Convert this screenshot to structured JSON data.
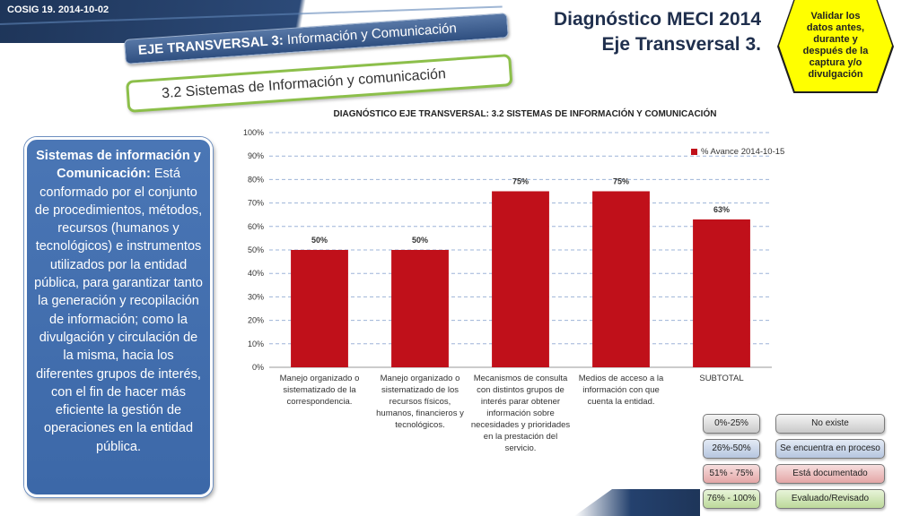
{
  "header": {
    "doc_code": "COSIG 19. 2014-10-02",
    "title_line1": "Diagnóstico MECI 2014",
    "title_line2": "Eje Transversal 3."
  },
  "note": {
    "text": "Validar los datos antes, durante y después de la captura y/o divulgación",
    "color": "#ffff00"
  },
  "banners": {
    "axis_prefix": "EJE TRANSVERSAL 3:",
    "axis_name": " Información y Comunicación",
    "section": "3.2 Sistemas de Información y comunicación"
  },
  "description": {
    "term": "Sistemas de información y Comunicación:",
    "body": " Está conformado por el conjunto de procedimientos, métodos, recursos (humanos y tecnológicos) e instrumentos utilizados por la entidad pública, para garantizar tanto la generación y recopilación de información; como la divulgación y circulación de la misma, hacia los diferentes grupos de interés, con el fin de hacer más eficiente la gestión de operaciones en la entidad pública."
  },
  "chart_data": {
    "type": "bar",
    "title": "DIAGNÓSTICO EJE TRANSVERSAL: 3.2 SISTEMAS DE INFORMACIÓN Y COMUNICACIÓN",
    "categories": [
      "Manejo organizado o sistematizado de la correspondencia.",
      "Manejo organizado o sistematizado de los recursos físicos, humanos, financieros y tecnológicos.",
      "Mecanismos de consulta con distintos grupos de interés parar obtener información sobre necesidades y prioridades en la prestación del servicio.",
      "Medios de acceso a la información con que cuenta la entidad.",
      "SUBTOTAL"
    ],
    "series": [
      {
        "name": "% Avance 2014-10-15",
        "values": [
          50,
          50,
          75,
          75,
          63
        ],
        "color": "#c0101a"
      }
    ],
    "data_labels": [
      "50%",
      "50%",
      "75%",
      "75%",
      "63%"
    ],
    "y_ticks": [
      "0%",
      "10%",
      "20%",
      "30%",
      "40%",
      "50%",
      "60%",
      "70%",
      "80%",
      "90%",
      "100%"
    ],
    "ylim": [
      0,
      100
    ],
    "grid": true,
    "legend_position": "top-right"
  },
  "status_legend": [
    {
      "range": "0%-25%",
      "status": "No existe"
    },
    {
      "range": "26%-50%",
      "status": "Se encuentra en proceso"
    },
    {
      "range": "51% - 75%",
      "status": "Está documentado"
    },
    {
      "range": "76% - 100%",
      "status": "Evaluado/Revisado"
    }
  ]
}
